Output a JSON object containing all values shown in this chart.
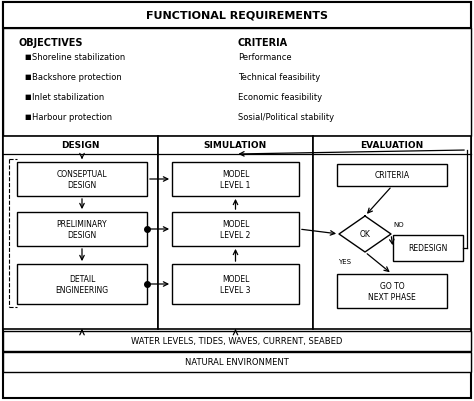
{
  "title": "FUNCTIONAL REQUIREMENTS",
  "objectives_title": "OBJECTIVES",
  "objectives": [
    "Shoreline stabilization",
    "Backshore protection",
    "Inlet stabilization",
    "Harbour protection"
  ],
  "criteria_title": "CRITERIA",
  "criteria": [
    "Performance",
    "Technical feasibility",
    "Economic feasibility",
    "Sosial/Political stability"
  ],
  "design_title": "DESIGN",
  "simulation_title": "SIMULATION",
  "evaluation_title": "EVALUATION",
  "design_boxes": [
    "CONSEPTUAL\nDESIGN",
    "PRELIMINARY\nDESIGN",
    "DETAIL\nENGINEERING"
  ],
  "simulation_boxes": [
    "MODEL\nLEVEL 1",
    "MODEL\nLEVEL 2",
    "MODEL\nLEVEL 3"
  ],
  "eval_criteria": "CRITERIA",
  "eval_redesign": "REDESIGN",
  "eval_next": "GO TO\nNEXT PHASE",
  "ok_label": "OK",
  "yes_label": "YES",
  "no_label": "NO",
  "bottom_box1": "WATER LEVELS, TIDES, WAVES, CURRENT, SEABED",
  "bottom_box2": "NATURAL ENVIRONMENT",
  "bg_color": "#ffffff",
  "text_color": "#000000"
}
